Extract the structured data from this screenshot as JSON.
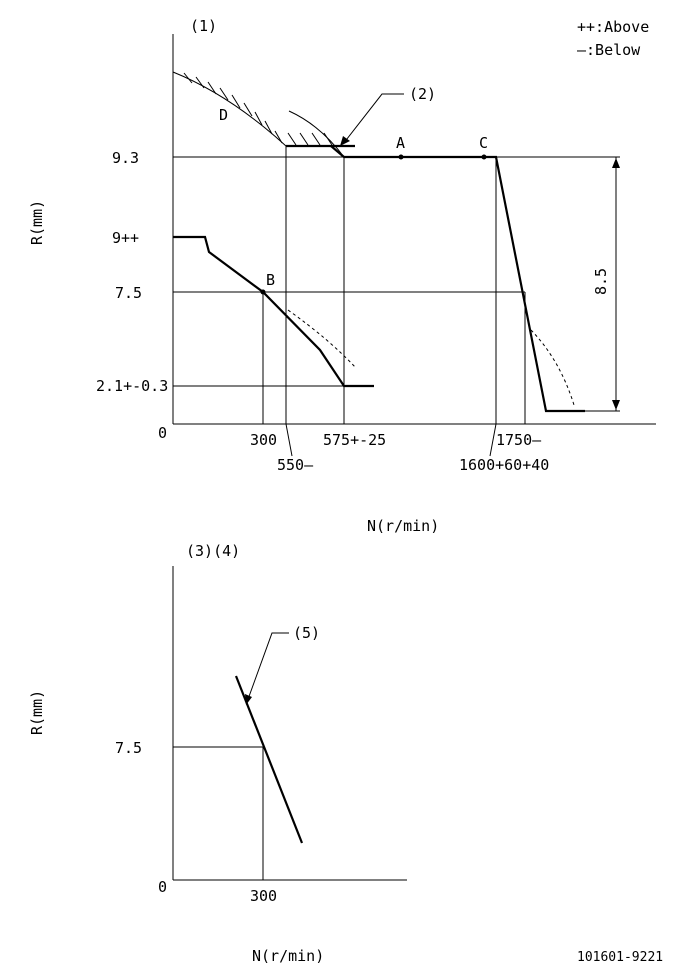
{
  "legend": {
    "above": "++:Above",
    "below": "—:Below"
  },
  "top_chart": {
    "marker": "(1)",
    "callout": "(2)",
    "ylabel": "R(mm)",
    "xlabel": "N(r/min)",
    "y_ticks": {
      "y93": "9.3",
      "y9": "9++",
      "y75": "7.5",
      "y21": "2.1+-0.3",
      "y0": "0"
    },
    "x_ticks": {
      "x300": "300",
      "x550": "550—",
      "x575": "575+-25",
      "x1750": "1750—",
      "x1600": "1600+60+40"
    },
    "points": {
      "A": "A",
      "B": "B",
      "C": "C",
      "D": "D"
    },
    "stroke_label": "8.5"
  },
  "bottom_chart": {
    "markers": "(3)(4)",
    "callout": "(5)",
    "ylabel": "R(mm)",
    "xlabel": "N(r/min)",
    "y_tick": "7.5",
    "origin": "0",
    "x_tick": "300"
  },
  "doc_code": "101601-9221"
}
